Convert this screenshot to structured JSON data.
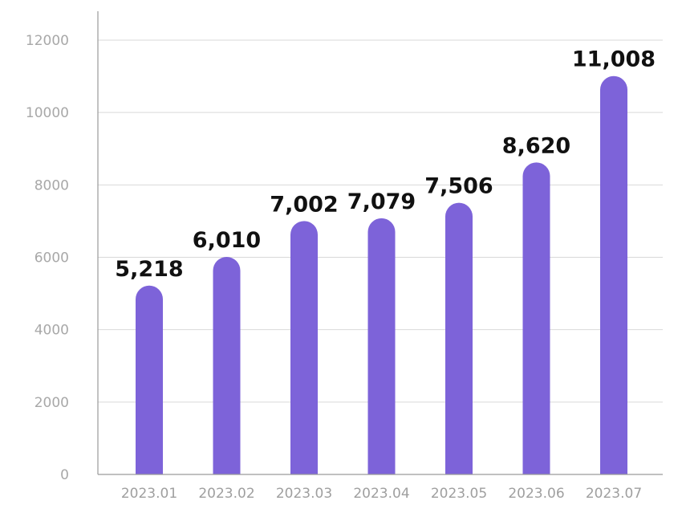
{
  "chart_data": {
    "type": "bar",
    "title": "",
    "xlabel": "",
    "ylabel": "",
    "categories": [
      "2023.01",
      "2023.02",
      "2023.03",
      "2023.04",
      "2023.05",
      "2023.06",
      "2023.07"
    ],
    "values": [
      5218,
      6010,
      7002,
      7079,
      7506,
      8620,
      11008
    ],
    "data_labels": [
      "5,218",
      "6,010",
      "7,002",
      "7,079",
      "7,506",
      "8,620",
      "11,008"
    ],
    "ylim": [
      0,
      12000
    ],
    "yticks": [
      0,
      2000,
      4000,
      6000,
      8000,
      10000,
      12000
    ],
    "ytick_labels": [
      "0",
      "2000",
      "4000",
      "6000",
      "8000",
      "10000",
      "12000"
    ],
    "grid": true,
    "legend": "none",
    "bar_color": "#7d63d9",
    "bar_style": "rounded-top"
  }
}
